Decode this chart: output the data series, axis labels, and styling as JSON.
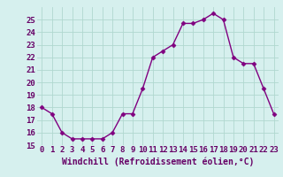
{
  "x": [
    0,
    1,
    2,
    3,
    4,
    5,
    6,
    7,
    8,
    9,
    10,
    11,
    12,
    13,
    14,
    15,
    16,
    17,
    18,
    19,
    20,
    21,
    22,
    23
  ],
  "y": [
    18.0,
    17.5,
    16.0,
    15.5,
    15.5,
    15.5,
    15.5,
    16.0,
    17.5,
    17.5,
    19.5,
    22.0,
    22.5,
    23.0,
    24.7,
    24.7,
    25.0,
    25.5,
    25.0,
    22.0,
    21.5,
    21.5,
    19.5,
    17.5
  ],
  "line_color": "#800080",
  "marker": "D",
  "marker_size": 2.5,
  "bg_color": "#d6f0ee",
  "grid_color": "#b0d8d0",
  "xlabel": "Windchill (Refroidissement éolien,°C)",
  "xlabel_color": "#660066",
  "tick_color": "#660066",
  "ylim": [
    15,
    26
  ],
  "xlim": [
    -0.5,
    23.5
  ],
  "yticks": [
    15,
    16,
    17,
    18,
    19,
    20,
    21,
    22,
    23,
    24,
    25
  ],
  "xticks": [
    0,
    1,
    2,
    3,
    4,
    5,
    6,
    7,
    8,
    9,
    10,
    11,
    12,
    13,
    14,
    15,
    16,
    17,
    18,
    19,
    20,
    21,
    22,
    23
  ],
  "xlabel_fontsize": 7,
  "tick_fontsize": 6.5,
  "line_width": 1.0
}
